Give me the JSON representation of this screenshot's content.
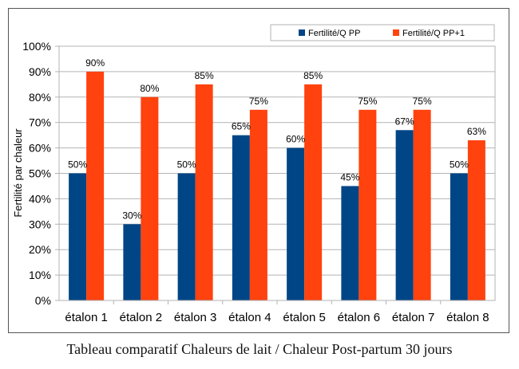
{
  "caption": "Tableau comparatif Chaleurs de lait / Chaleur Post-partum 30 jours",
  "chart_data": {
    "type": "bar",
    "title": "",
    "xlabel": "",
    "ylabel": "Fertilité par chaleur",
    "categories": [
      "étalon 1",
      "étalon 2",
      "étalon 3",
      "étalon 4",
      "étalon 5",
      "étalon 6",
      "étalon 7",
      "étalon 8"
    ],
    "series": [
      {
        "name": "Fertilité/Q PP",
        "color": "#004586",
        "values": [
          50,
          30,
          50,
          65,
          60,
          45,
          67,
          50
        ],
        "labels": [
          "50%",
          "30%",
          "50%",
          "65%",
          "60%",
          "45%",
          "67%",
          "50%"
        ]
      },
      {
        "name": "Fertilité/Q PP+1",
        "color": "#FF420E",
        "values": [
          90,
          80,
          85,
          75,
          85,
          75,
          75,
          63
        ],
        "labels": [
          "90%",
          "80%",
          "85%",
          "75%",
          "85%",
          "75%",
          "75%",
          "63%"
        ]
      }
    ],
    "ylim": [
      0,
      100
    ],
    "yticks": [
      "0%",
      "10%",
      "20%",
      "30%",
      "40%",
      "50%",
      "60%",
      "70%",
      "80%",
      "90%",
      "100%"
    ],
    "grid": true,
    "legend_position": "top-right"
  }
}
